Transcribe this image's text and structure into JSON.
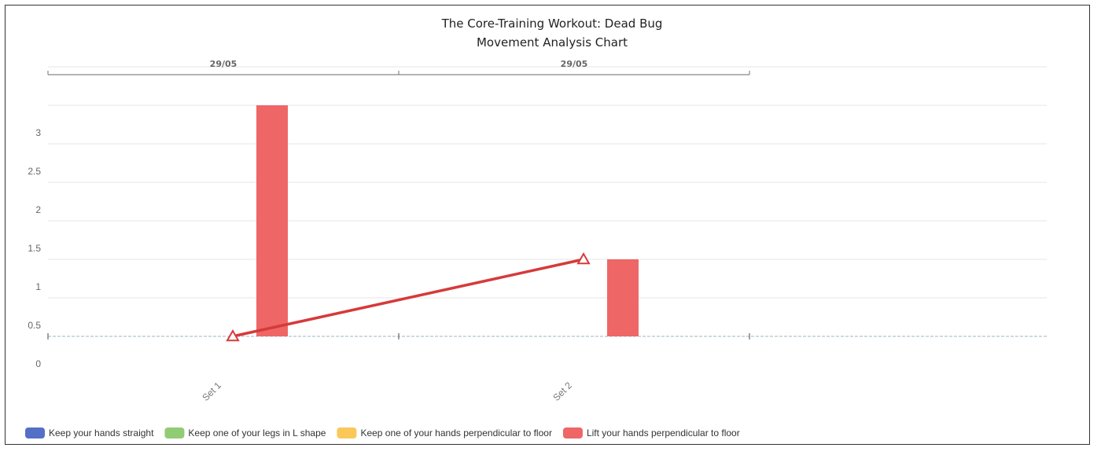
{
  "chart_data": {
    "type": "bar",
    "title_line1": "The Core-Training Workout: Dead Bug",
    "title_line2": "Movement Analysis Chart",
    "top_axis_labels": [
      "29/05",
      "29/05"
    ],
    "categories": [
      "Set 1",
      "Set 2"
    ],
    "y_tick_labels": [
      "0",
      "0.5",
      "1",
      "1.5",
      "2",
      "2.5",
      "3"
    ],
    "ylim": [
      0,
      3.5
    ],
    "grid": true,
    "legend_position": "bottom-left",
    "series": [
      {
        "name": "Keep your hands straight",
        "color": "#5470c6",
        "type": "bar",
        "values": [
          0,
          0
        ]
      },
      {
        "name": "Keep one of your legs in L shape",
        "color": "#91cc75",
        "type": "bar",
        "values": [
          0,
          0
        ]
      },
      {
        "name": "Keep one of your hands perpendicular to floor",
        "color": "#fac858",
        "type": "bar",
        "values": [
          0,
          0
        ]
      },
      {
        "name": "Lift your hands perpendicular to floor",
        "color": "#ee6666",
        "type": "bar",
        "values": [
          3,
          1
        ]
      }
    ],
    "line_series": {
      "name": "Lift your hands perpendicular to floor",
      "color": "#d63a3a",
      "marker": "triangle",
      "values": [
        0,
        1
      ]
    }
  }
}
